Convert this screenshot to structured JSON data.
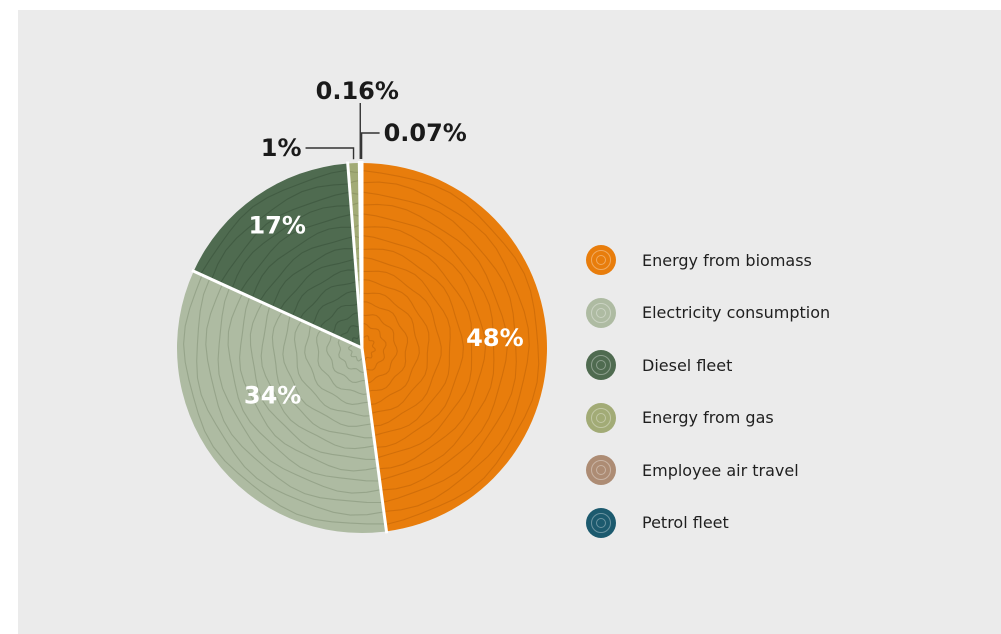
{
  "chart_data": {
    "type": "pie",
    "title": "",
    "start": "top, clockwise",
    "slices": [
      {
        "name": "Energy from biomass",
        "value": 48,
        "label": "48%",
        "color": "#e87d0c",
        "ring_color": "#c96a08"
      },
      {
        "name": "Electricity consumption",
        "value": 34,
        "label": "34%",
        "color": "#aebba2",
        "ring_color": "#8e9c82"
      },
      {
        "name": "Diesel fleet",
        "value": 17,
        "label": "17%",
        "color": "#4f6b50",
        "ring_color": "#3e573f"
      },
      {
        "name": "Energy from gas",
        "value": 1,
        "label": "1%",
        "color": "#a2ab76",
        "ring_color": "#8a9262"
      },
      {
        "name": "Employee air travel",
        "value": 0.16,
        "label": "0.16%",
        "color": "#ad8c74",
        "ring_color": "#94765f"
      },
      {
        "name": "Petrol fleet",
        "value": 0.07,
        "label": "0.07%",
        "color": "#1c5a6e",
        "ring_color": "#164a5b"
      }
    ],
    "legend_position": "right"
  },
  "legend": [
    {
      "label": "Energy from biomass",
      "color": "#e87d0c"
    },
    {
      "label": "Electricity consumption",
      "color": "#aebba2"
    },
    {
      "label": "Diesel fleet",
      "color": "#4f6b50"
    },
    {
      "label": "Energy from gas",
      "color": "#a2ab76"
    },
    {
      "label": "Employee air travel",
      "color": "#ad8c74"
    },
    {
      "label": "Petrol fleet",
      "color": "#1c5a6e"
    }
  ]
}
